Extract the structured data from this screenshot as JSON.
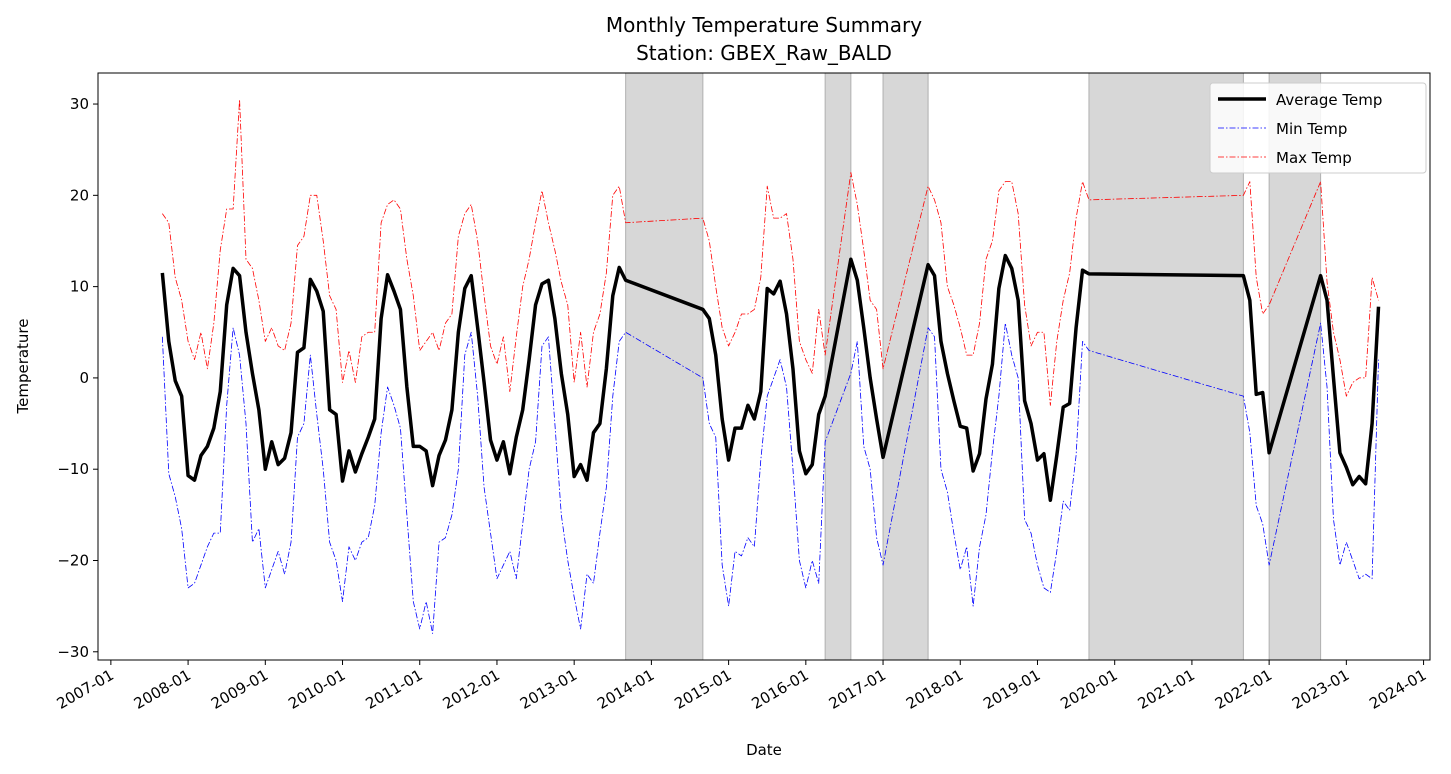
{
  "chart_data": {
    "type": "line",
    "title": "Monthly Temperature Summary",
    "subtitle": "Station: GBEX_Raw_BALD",
    "x_label": "Date",
    "y_label": "Temperature",
    "x": [
      "2007-09",
      "2007-10",
      "2007-11",
      "2007-12",
      "2008-01",
      "2008-02",
      "2008-03",
      "2008-04",
      "2008-05",
      "2008-06",
      "2008-07",
      "2008-08",
      "2008-09",
      "2008-10",
      "2008-11",
      "2008-12",
      "2009-01",
      "2009-02",
      "2009-03",
      "2009-04",
      "2009-05",
      "2009-06",
      "2009-07",
      "2009-08",
      "2009-09",
      "2009-10",
      "2009-11",
      "2009-12",
      "2010-01",
      "2010-02",
      "2010-03",
      "2010-04",
      "2010-05",
      "2010-06",
      "2010-07",
      "2010-08",
      "2010-09",
      "2010-10",
      "2010-11",
      "2010-12",
      "2011-01",
      "2011-02",
      "2011-03",
      "2011-04",
      "2011-05",
      "2011-06",
      "2011-07",
      "2011-08",
      "2011-09",
      "2011-10",
      "2011-11",
      "2011-12",
      "2012-01",
      "2012-02",
      "2012-03",
      "2012-04",
      "2012-05",
      "2012-06",
      "2012-07",
      "2012-08",
      "2012-09",
      "2012-10",
      "2012-11",
      "2012-12",
      "2013-01",
      "2013-02",
      "2013-03",
      "2013-04",
      "2013-05",
      "2013-06",
      "2013-07",
      "2013-08",
      "2013-09",
      "2014-09",
      "2014-10",
      "2014-11",
      "2014-12",
      "2015-01",
      "2015-02",
      "2015-03",
      "2015-04",
      "2015-05",
      "2015-06",
      "2015-07",
      "2015-08",
      "2015-09",
      "2015-10",
      "2015-11",
      "2015-12",
      "2016-01",
      "2016-02",
      "2016-03",
      "2016-04",
      "2016-08",
      "2016-09",
      "2016-10",
      "2016-11",
      "2016-12",
      "2017-01",
      "2017-08",
      "2017-09",
      "2017-10",
      "2017-11",
      "2017-12",
      "2018-01",
      "2018-02",
      "2018-03",
      "2018-04",
      "2018-05",
      "2018-06",
      "2018-07",
      "2018-08",
      "2018-09",
      "2018-10",
      "2018-11",
      "2018-12",
      "2019-01",
      "2019-02",
      "2019-03",
      "2019-04",
      "2019-05",
      "2019-06",
      "2019-07",
      "2019-08",
      "2019-09",
      "2021-09",
      "2021-10",
      "2021-11",
      "2021-12",
      "2022-01",
      "2022-09",
      "2022-10",
      "2022-11",
      "2022-12",
      "2023-01",
      "2023-02",
      "2023-03",
      "2023-04",
      "2023-05",
      "2023-06"
    ],
    "series": [
      {
        "name": "Average Temp",
        "color": "#000000",
        "width": 3.5,
        "dash": "solid",
        "values": [
          11.5,
          4,
          -0.3,
          -2,
          -10.7,
          -11.2,
          -8.5,
          -7.5,
          -5.5,
          -1.5,
          8,
          12,
          11.2,
          5,
          0.5,
          -3.5,
          -10,
          -7,
          -9.5,
          -8.8,
          -6,
          2.8,
          3.3,
          10.8,
          9.5,
          7.3,
          -3.5,
          -4,
          -11.3,
          -8,
          -10.3,
          -8.3,
          -6.5,
          -4.5,
          6.5,
          11.3,
          9.5,
          7.5,
          -1,
          -7.5,
          -7.5,
          -8,
          -11.8,
          -8.5,
          -6.8,
          -3.5,
          5,
          9.8,
          11.2,
          5.5,
          -0.5,
          -6.8,
          -9,
          -7,
          -10.5,
          -6.5,
          -3.5,
          2,
          8,
          10.3,
          10.7,
          6.5,
          0.5,
          -4,
          -10.8,
          -9.5,
          -11.2,
          -6,
          -5,
          1,
          9,
          12.1,
          10.7,
          7.5,
          6.5,
          2.5,
          -4.5,
          -9,
          -5.5,
          -5.5,
          -3,
          -4.5,
          -1.5,
          9.8,
          9.2,
          10.6,
          7,
          1,
          -8,
          -10.5,
          -9.5,
          -4,
          -2,
          13,
          10.7,
          5.5,
          0,
          -4.5,
          -8.7,
          12.4,
          11.2,
          4,
          0.5,
          -2.5,
          -5.3,
          -5.5,
          -10.2,
          -8.3,
          -2.3,
          1.5,
          9.8,
          13.4,
          12,
          8.5,
          -2.5,
          -5,
          -9,
          -8.3,
          -13.4,
          -8.5,
          -3.2,
          -2.8,
          5.5,
          11.8,
          11.4,
          11.2,
          8.5,
          -1.8,
          -1.6,
          -8.2,
          11.2,
          8.5,
          0,
          -8.2,
          -9.8,
          -11.7,
          -10.8,
          -11.6,
          -5,
          7.8
        ]
      },
      {
        "name": "Min Temp",
        "color": "#0000ff",
        "width": 0.8,
        "dash": "dashdot",
        "values": [
          4.5,
          -10.5,
          -13,
          -16.5,
          -23,
          -22.5,
          -20.5,
          -18.5,
          -17,
          -17,
          -3,
          5.5,
          2.5,
          -5,
          -18,
          -16.5,
          -23,
          -21,
          -19,
          -21.5,
          -18,
          -6.5,
          -5,
          2.5,
          -4,
          -10,
          -18,
          -20,
          -24.5,
          -18.5,
          -20,
          -18,
          -17.5,
          -14,
          -6,
          -1,
          -3,
          -5.5,
          -15,
          -24.5,
          -27.5,
          -24.5,
          -28,
          -18,
          -17.5,
          -15,
          -10,
          2.5,
          5,
          -2,
          -12,
          -17,
          -22,
          -20.5,
          -19,
          -22,
          -16,
          -10,
          -7,
          3.5,
          4.5,
          -5,
          -15,
          -20,
          -24,
          -27.5,
          -21.5,
          -22.5,
          -17,
          -12,
          -2,
          4,
          5,
          0,
          -5,
          -6.5,
          -20.5,
          -25,
          -19,
          -19.5,
          -17.5,
          -18.5,
          -9,
          -2,
          0,
          2,
          -1,
          -10,
          -20,
          -23,
          -20,
          -22.5,
          -7,
          0.5,
          4,
          -7.5,
          -10,
          -17.5,
          -20.5,
          5.5,
          4.5,
          -10,
          -12.5,
          -17,
          -21,
          -18.5,
          -25,
          -18.5,
          -15,
          -8,
          -2,
          6,
          2.5,
          0,
          -15.5,
          -17,
          -20.5,
          -23,
          -23.5,
          -19,
          -13.5,
          -14.5,
          -8.5,
          4,
          3,
          -2,
          -6,
          -14,
          -16,
          -20.5,
          6,
          -1,
          -15.5,
          -20.5,
          -18,
          -20,
          -22,
          -21.5,
          -22,
          2
        ]
      },
      {
        "name": "Max Temp",
        "color": "#ff0000",
        "width": 0.8,
        "dash": "dashdot",
        "values": [
          18,
          17,
          11,
          8.5,
          4,
          2,
          5,
          1,
          6,
          14,
          18.5,
          18.5,
          30.5,
          13,
          12,
          8.5,
          4,
          5.5,
          3.5,
          3,
          6,
          14.5,
          15.5,
          20,
          20,
          15,
          9,
          7.5,
          -0.5,
          3,
          -0.5,
          4.5,
          5,
          5,
          17,
          19,
          19.5,
          18.5,
          13,
          9,
          3,
          4,
          5,
          3,
          6,
          7,
          15.5,
          18,
          19,
          15,
          9,
          3.5,
          1.5,
          4.5,
          -1.5,
          4.5,
          10,
          13,
          17,
          20.5,
          17,
          14,
          10.5,
          8,
          -0.5,
          5,
          -1,
          5,
          7,
          11.5,
          20,
          21,
          17,
          17.5,
          15,
          10,
          5.5,
          3.5,
          5,
          7,
          7,
          7.5,
          11,
          21,
          17.5,
          17.5,
          18,
          13,
          4,
          2,
          0.5,
          7.5,
          2.5,
          22.5,
          19,
          14,
          8.5,
          7.5,
          1,
          21,
          19.5,
          17,
          10,
          8,
          5.5,
          2.5,
          2.5,
          6,
          13,
          15,
          20.5,
          21.5,
          21.5,
          18,
          8,
          3.5,
          5,
          5,
          -3,
          4,
          8.5,
          11.5,
          17.5,
          21.5,
          19.5,
          20,
          21.5,
          11,
          7,
          8,
          21.5,
          10.5,
          5,
          2,
          -2,
          -0.5,
          0,
          0,
          11,
          8.5
        ]
      }
    ],
    "spans": [
      [
        "2013-09",
        "2014-09"
      ],
      [
        "2016-04",
        "2016-08"
      ],
      [
        "2017-01",
        "2017-08"
      ],
      [
        "2019-09",
        "2021-09"
      ],
      [
        "2022-01",
        "2022-09"
      ]
    ],
    "span_color": "#d3d3d3",
    "xlim": [
      "2006-11",
      "2024-02"
    ],
    "xticks": [
      "2007-01",
      "2008-01",
      "2009-01",
      "2010-01",
      "2011-01",
      "2012-01",
      "2013-01",
      "2014-01",
      "2015-01",
      "2016-01",
      "2017-01",
      "2018-01",
      "2019-01",
      "2020-01",
      "2021-01",
      "2022-01",
      "2023-01",
      "2024-01"
    ],
    "ylim": [
      -30.9,
      33.4
    ],
    "yticks": [
      {
        "value": -30,
        "label": "−30"
      },
      {
        "value": -20,
        "label": "−20"
      },
      {
        "value": -10,
        "label": "−10"
      },
      0,
      10,
      20,
      30
    ],
    "grid": false,
    "legend": "upper right"
  }
}
